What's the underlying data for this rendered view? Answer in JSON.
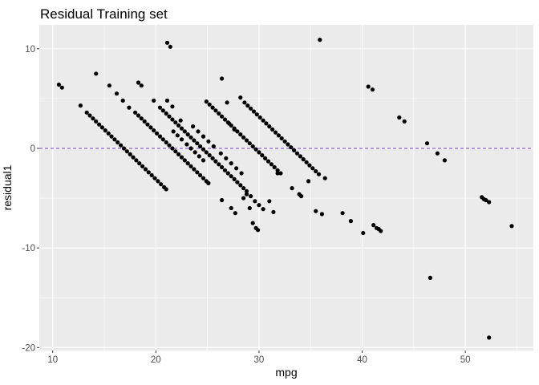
{
  "chart_data": {
    "type": "scatter",
    "title": "Residual Training set",
    "xlabel": "mpg",
    "ylabel": "residual1",
    "xlim": [
      8.7,
      56.6
    ],
    "ylim": [
      -20.3,
      12.4
    ],
    "x_ticks": [
      10,
      20,
      30,
      40,
      50
    ],
    "y_ticks": [
      10,
      0,
      -10,
      -20
    ],
    "x_tick_labels": [
      "10",
      "20",
      "30",
      "40",
      "50"
    ],
    "y_tick_labels": [
      "10",
      "0",
      "-10",
      "-20"
    ],
    "grid": true,
    "reference_line": {
      "y": 0,
      "style": "dashed",
      "color": "#7b3fe4"
    },
    "point_color": "#000000",
    "panel_background": "#ebebeb",
    "series": [
      {
        "points": [
          [
            10.6,
            6.4
          ],
          [
            10.9,
            6.1
          ],
          [
            12.7,
            4.3
          ],
          [
            14.2,
            7.5
          ],
          [
            15.5,
            6.3
          ],
          [
            16.2,
            5.5
          ],
          [
            16.8,
            4.8
          ],
          [
            17.4,
            4.1
          ],
          [
            18.3,
            6.6
          ],
          [
            18.6,
            6.3
          ],
          [
            19.8,
            4.8
          ],
          [
            21.1,
            10.6
          ],
          [
            21.4,
            10.2
          ],
          [
            21.1,
            4.8
          ],
          [
            21.6,
            4.2
          ],
          [
            22.4,
            2.8
          ],
          [
            26.4,
            7.0
          ],
          [
            26.9,
            4.6
          ],
          [
            27.1,
            2.5
          ],
          [
            27.6,
            1.9
          ],
          [
            28.2,
            5.1
          ],
          [
            35.9,
            10.9
          ],
          [
            13.3,
            3.6
          ],
          [
            13.6,
            3.3
          ],
          [
            13.9,
            3.0
          ],
          [
            14.2,
            2.7
          ],
          [
            14.5,
            2.4
          ],
          [
            14.8,
            2.1
          ],
          [
            15.1,
            1.8
          ],
          [
            15.4,
            1.5
          ],
          [
            15.7,
            1.2
          ],
          [
            16.0,
            0.9
          ],
          [
            16.3,
            0.6
          ],
          [
            16.6,
            0.3
          ],
          [
            16.9,
            0.0
          ],
          [
            17.2,
            -0.3
          ],
          [
            17.5,
            -0.6
          ],
          [
            17.8,
            -0.9
          ],
          [
            18.1,
            -1.2
          ],
          [
            18.4,
            -1.5
          ],
          [
            18.7,
            -1.8
          ],
          [
            19.0,
            -2.1
          ],
          [
            19.3,
            -2.4
          ],
          [
            19.6,
            -2.7
          ],
          [
            19.9,
            -3.0
          ],
          [
            20.2,
            -3.3
          ],
          [
            20.5,
            -3.6
          ],
          [
            20.8,
            -3.9
          ],
          [
            21.0,
            -4.1
          ],
          [
            18.0,
            3.6
          ],
          [
            18.3,
            3.3
          ],
          [
            18.6,
            3.0
          ],
          [
            18.9,
            2.7
          ],
          [
            19.2,
            2.4
          ],
          [
            19.5,
            2.1
          ],
          [
            19.8,
            1.8
          ],
          [
            20.1,
            1.5
          ],
          [
            20.4,
            1.2
          ],
          [
            20.7,
            0.9
          ],
          [
            21.0,
            0.6
          ],
          [
            21.3,
            0.3
          ],
          [
            21.6,
            0.0
          ],
          [
            21.9,
            -0.3
          ],
          [
            22.2,
            -0.6
          ],
          [
            22.5,
            -0.9
          ],
          [
            22.8,
            -1.2
          ],
          [
            23.1,
            -1.5
          ],
          [
            23.4,
            -1.8
          ],
          [
            23.7,
            -2.1
          ],
          [
            24.0,
            -2.4
          ],
          [
            24.3,
            -2.7
          ],
          [
            24.6,
            -3.0
          ],
          [
            24.9,
            -3.3
          ],
          [
            25.1,
            -3.5
          ],
          [
            20.4,
            4.1
          ],
          [
            20.7,
            3.8
          ],
          [
            21.0,
            3.5
          ],
          [
            21.3,
            3.2
          ],
          [
            21.6,
            2.9
          ],
          [
            21.9,
            2.6
          ],
          [
            22.2,
            2.3
          ],
          [
            22.5,
            2.0
          ],
          [
            22.8,
            1.7
          ],
          [
            23.1,
            1.4
          ],
          [
            23.4,
            1.1
          ],
          [
            23.7,
            0.8
          ],
          [
            24.0,
            0.5
          ],
          [
            24.3,
            0.2
          ],
          [
            24.6,
            -0.1
          ],
          [
            24.9,
            -0.4
          ],
          [
            25.2,
            -0.7
          ],
          [
            25.5,
            -1.0
          ],
          [
            25.8,
            -1.3
          ],
          [
            26.1,
            -1.6
          ],
          [
            26.4,
            -1.9
          ],
          [
            26.7,
            -2.2
          ],
          [
            27.0,
            -2.5
          ],
          [
            27.3,
            -2.8
          ],
          [
            27.6,
            -3.1
          ],
          [
            27.9,
            -3.4
          ],
          [
            28.2,
            -3.7
          ],
          [
            28.5,
            -4.0
          ],
          [
            28.8,
            -4.3
          ],
          [
            24.9,
            4.7
          ],
          [
            25.2,
            4.4
          ],
          [
            25.5,
            4.1
          ],
          [
            25.8,
            3.8
          ],
          [
            26.1,
            3.5
          ],
          [
            26.4,
            3.2
          ],
          [
            26.7,
            2.9
          ],
          [
            27.0,
            2.6
          ],
          [
            27.3,
            2.3
          ],
          [
            27.6,
            2.0
          ],
          [
            27.9,
            1.7
          ],
          [
            28.2,
            1.4
          ],
          [
            28.5,
            1.1
          ],
          [
            28.8,
            0.8
          ],
          [
            29.1,
            0.5
          ],
          [
            29.4,
            0.2
          ],
          [
            29.7,
            -0.1
          ],
          [
            30.0,
            -0.4
          ],
          [
            30.3,
            -0.7
          ],
          [
            30.6,
            -1.0
          ],
          [
            30.9,
            -1.3
          ],
          [
            31.2,
            -1.6
          ],
          [
            31.5,
            -1.9
          ],
          [
            31.8,
            -2.2
          ],
          [
            32.1,
            -2.5
          ],
          [
            28.6,
            4.6
          ],
          [
            28.9,
            4.3
          ],
          [
            29.2,
            4.0
          ],
          [
            29.5,
            3.7
          ],
          [
            29.8,
            3.4
          ],
          [
            30.1,
            3.1
          ],
          [
            30.4,
            2.8
          ],
          [
            30.7,
            2.5
          ],
          [
            31.0,
            2.2
          ],
          [
            31.3,
            1.9
          ],
          [
            31.6,
            1.6
          ],
          [
            31.9,
            1.3
          ],
          [
            32.2,
            1.0
          ],
          [
            32.5,
            0.7
          ],
          [
            32.8,
            0.4
          ],
          [
            33.1,
            0.1
          ],
          [
            33.4,
            -0.2
          ],
          [
            33.7,
            -0.5
          ],
          [
            34.0,
            -0.8
          ],
          [
            34.3,
            -1.1
          ],
          [
            34.6,
            -1.4
          ],
          [
            34.9,
            -1.7
          ],
          [
            35.2,
            -2.0
          ],
          [
            35.5,
            -2.3
          ],
          [
            35.8,
            -2.6
          ],
          [
            36.4,
            -3.0
          ],
          [
            21.7,
            1.7
          ],
          [
            22.1,
            1.3
          ],
          [
            22.5,
            0.9
          ],
          [
            23.0,
            0.4
          ],
          [
            23.4,
            0.0
          ],
          [
            23.8,
            -0.4
          ],
          [
            24.2,
            -0.8
          ],
          [
            24.6,
            -1.2
          ],
          [
            23.6,
            2.2
          ],
          [
            24.1,
            1.7
          ],
          [
            24.6,
            1.2
          ],
          [
            25.1,
            0.7
          ],
          [
            25.6,
            0.2
          ],
          [
            26.3,
            -0.5
          ],
          [
            26.8,
            -1.0
          ],
          [
            27.3,
            -1.5
          ],
          [
            27.8,
            -2.0
          ],
          [
            28.3,
            -2.5
          ],
          [
            26.4,
            -5.2
          ],
          [
            27.3,
            -6.0
          ],
          [
            27.7,
            -6.5
          ],
          [
            28.5,
            -5.0
          ],
          [
            28.8,
            -4.6
          ],
          [
            29.1,
            -6.0
          ],
          [
            29.4,
            -7.5
          ],
          [
            29.7,
            -8.0
          ],
          [
            29.9,
            -8.2
          ],
          [
            29.2,
            -4.8
          ],
          [
            29.6,
            -5.3
          ],
          [
            30.0,
            -5.7
          ],
          [
            30.4,
            -6.1
          ],
          [
            31.0,
            -5.3
          ],
          [
            31.4,
            -6.4
          ],
          [
            31.8,
            -2.5
          ],
          [
            33.2,
            -4.0
          ],
          [
            33.9,
            -4.6
          ],
          [
            34.1,
            -4.8
          ],
          [
            34.8,
            -3.3
          ],
          [
            35.5,
            -6.3
          ],
          [
            36.1,
            -6.6
          ],
          [
            38.1,
            -6.5
          ],
          [
            38.9,
            -7.3
          ],
          [
            40.1,
            -8.5
          ],
          [
            40.6,
            6.2
          ],
          [
            41.0,
            5.9
          ],
          [
            41.1,
            -7.7
          ],
          [
            41.4,
            -8.0
          ],
          [
            41.6,
            -8.1
          ],
          [
            41.8,
            -8.3
          ],
          [
            43.6,
            3.1
          ],
          [
            44.1,
            2.7
          ],
          [
            46.3,
            0.5
          ],
          [
            46.6,
            -13.0
          ],
          [
            47.3,
            -0.5
          ],
          [
            48.0,
            -1.2
          ],
          [
            51.6,
            -4.9
          ],
          [
            51.8,
            -5.1
          ],
          [
            52.0,
            -5.2
          ],
          [
            52.3,
            -5.4
          ],
          [
            52.3,
            -19.0
          ],
          [
            54.5,
            -7.8
          ]
        ]
      }
    ]
  }
}
